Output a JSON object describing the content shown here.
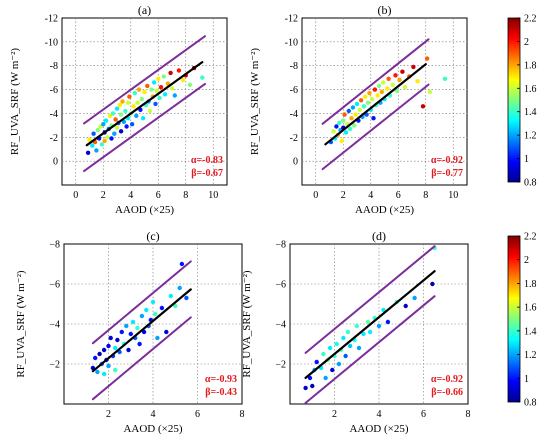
{
  "figure": {
    "shared_xlabel": "AAOD (×25)",
    "shared_ylabel": "RF_UVA_SRF (W m⁻²)"
  },
  "colorbar": {
    "ticks": [
      0.8,
      1.0,
      1.2,
      1.4,
      1.6,
      1.8,
      2.0,
      2.2
    ],
    "tick_labels": [
      "0.8",
      "1",
      "1.2",
      "1.4",
      "1.6",
      "1.8",
      "2",
      "2.2"
    ],
    "colormap": "jet",
    "range": [
      0.8,
      2.2
    ]
  },
  "chart_data": [
    {
      "type": "scatter",
      "panel_label": "(a)",
      "xlabel": "AAOD (×25)",
      "ylabel": "RF_UVA_SRF (W m⁻²)",
      "xlim": [
        -1,
        11
      ],
      "ylim": [
        2,
        -12
      ],
      "xticks": [
        0,
        2,
        4,
        6,
        8,
        10
      ],
      "xtick_labels": [
        "0",
        "2",
        "4",
        "6",
        "8",
        "10"
      ],
      "yticks": [
        2,
        0,
        -2,
        -4,
        -6,
        -8,
        -10,
        -12
      ],
      "ytick_labels": [
        "",
        "0",
        "-2",
        "-4",
        "-6",
        "-8",
        "-10",
        "-12"
      ],
      "grid": true,
      "annotation": [
        "α=-0.83",
        "β=-0.67"
      ],
      "fit": {
        "slope": -0.83,
        "intercept": -0.67,
        "x_range": [
          0.8,
          9.2
        ]
      },
      "bounds": {
        "offset": 2.0,
        "x_range": [
          0.6,
          9.4
        ]
      },
      "points": [
        [
          0.9,
          -0.7,
          0.9
        ],
        [
          1.0,
          -1.8,
          1.7
        ],
        [
          1.2,
          -1.3,
          1.3
        ],
        [
          1.3,
          -2.3,
          1.1
        ],
        [
          1.4,
          -1.6,
          1.9
        ],
        [
          1.5,
          -0.9,
          1.2
        ],
        [
          1.6,
          -2.6,
          1.5
        ],
        [
          1.7,
          -1.9,
          1.0
        ],
        [
          1.8,
          -2.9,
          1.6
        ],
        [
          1.9,
          -1.4,
          1.4
        ],
        [
          2.0,
          -3.1,
          1.2
        ],
        [
          2.1,
          -2.4,
          0.9
        ],
        [
          2.1,
          -1.7,
          1.8
        ],
        [
          2.2,
          -3.4,
          1.3
        ],
        [
          2.3,
          -2.0,
          1.6
        ],
        [
          2.4,
          -2.7,
          1.1
        ],
        [
          2.5,
          -3.8,
          1.7
        ],
        [
          2.6,
          -1.9,
          1.0
        ],
        [
          2.6,
          -3.0,
          1.5
        ],
        [
          2.7,
          -4.0,
          1.4
        ],
        [
          2.8,
          -2.3,
          1.2
        ],
        [
          2.9,
          -3.5,
          1.9
        ],
        [
          3.0,
          -4.4,
          1.3
        ],
        [
          3.0,
          -2.8,
          1.6
        ],
        [
          3.1,
          -3.2,
          1.1
        ],
        [
          3.2,
          -4.7,
          1.7
        ],
        [
          3.3,
          -2.5,
          0.9
        ],
        [
          3.3,
          -3.9,
          1.5
        ],
        [
          3.4,
          -5.0,
          1.8
        ],
        [
          3.5,
          -3.3,
          1.2
        ],
        [
          3.6,
          -4.2,
          1.4
        ],
        [
          3.7,
          -2.9,
          1.0
        ],
        [
          3.8,
          -4.9,
          1.6
        ],
        [
          3.8,
          -3.6,
          1.3
        ],
        [
          3.9,
          -5.4,
          1.9
        ],
        [
          4.0,
          -4.0,
          1.5
        ],
        [
          4.1,
          -3.1,
          1.1
        ],
        [
          4.2,
          -4.6,
          1.7
        ],
        [
          4.3,
          -5.7,
          1.4
        ],
        [
          4.4,
          -3.8,
          1.2
        ],
        [
          4.5,
          -4.9,
          1.6
        ],
        [
          4.6,
          -6.0,
          1.8
        ],
        [
          4.7,
          -4.3,
          1.0
        ],
        [
          4.8,
          -5.2,
          1.5
        ],
        [
          4.9,
          -3.6,
          1.3
        ],
        [
          5.0,
          -5.8,
          1.7
        ],
        [
          5.1,
          -4.7,
          1.4
        ],
        [
          5.2,
          -6.3,
          1.9
        ],
        [
          5.3,
          -5.0,
          1.2
        ],
        [
          5.4,
          -4.2,
          1.6
        ],
        [
          5.5,
          -6.0,
          1.5
        ],
        [
          5.6,
          -5.4,
          1.8
        ],
        [
          5.7,
          -6.6,
          1.3
        ],
        [
          5.8,
          -4.8,
          1.1
        ],
        [
          5.9,
          -5.9,
          1.6
        ],
        [
          6.0,
          -6.9,
          1.7
        ],
        [
          6.1,
          -5.3,
          1.4
        ],
        [
          6.2,
          -6.2,
          2.0
        ],
        [
          6.4,
          -7.1,
          1.5
        ],
        [
          6.5,
          -5.6,
          1.3
        ],
        [
          6.7,
          -6.5,
          1.8
        ],
        [
          6.9,
          -7.4,
          2.1
        ],
        [
          7.0,
          -6.1,
          1.6
        ],
        [
          7.2,
          -5.5,
          1.2
        ],
        [
          7.5,
          -7.6,
          2.0
        ],
        [
          7.8,
          -6.8,
          1.7
        ],
        [
          8.0,
          -7.2,
          2.1
        ],
        [
          8.3,
          -6.4,
          1.5
        ],
        [
          8.6,
          -7.8,
          2.2
        ],
        [
          9.2,
          -7.0,
          1.4
        ]
      ]
    },
    {
      "type": "scatter",
      "panel_label": "(b)",
      "xlabel": "AAOD (×25)",
      "ylabel": "RF_UVA_SRF (W m⁻²)",
      "xlim": [
        -1,
        11
      ],
      "ylim": [
        2,
        -12
      ],
      "xticks": [
        0,
        2,
        4,
        6,
        8,
        10
      ],
      "xtick_labels": [
        "0",
        "2",
        "4",
        "6",
        "8",
        "10"
      ],
      "yticks": [
        2,
        0,
        -2,
        -4,
        -6,
        -8,
        -10,
        -12
      ],
      "ytick_labels": [
        "",
        "0",
        "-2",
        "-4",
        "-6",
        "-8",
        "-10",
        "-12"
      ],
      "grid": true,
      "annotation": [
        "α=-0.92",
        "β=-0.77"
      ],
      "fit": {
        "slope": -0.92,
        "intercept": -0.77,
        "x_range": [
          0.7,
          8.0
        ]
      },
      "bounds": {
        "offset": 1.9,
        "x_range": [
          0.5,
          8.2
        ]
      },
      "points": [
        [
          1.1,
          -1.6,
          1.1
        ],
        [
          1.3,
          -2.5,
          1.6
        ],
        [
          1.4,
          -1.9,
          1.3
        ],
        [
          1.5,
          -2.9,
          1.0
        ],
        [
          1.6,
          -2.2,
          1.8
        ],
        [
          1.7,
          -3.2,
          1.4
        ],
        [
          1.8,
          -2.6,
          1.2
        ],
        [
          1.9,
          -1.7,
          1.7
        ],
        [
          2.0,
          -3.4,
          1.5
        ],
        [
          2.0,
          -2.8,
          0.9
        ],
        [
          2.1,
          -3.9,
          1.9
        ],
        [
          2.2,
          -2.4,
          1.3
        ],
        [
          2.3,
          -3.1,
          1.6
        ],
        [
          2.4,
          -4.2,
          1.1
        ],
        [
          2.5,
          -2.7,
          1.4
        ],
        [
          2.6,
          -3.6,
          1.8
        ],
        [
          2.7,
          -4.5,
          1.2
        ],
        [
          2.8,
          -3.0,
          1.5
        ],
        [
          2.9,
          -3.9,
          1.7
        ],
        [
          3.0,
          -4.8,
          1.3
        ],
        [
          3.1,
          -3.4,
          1.0
        ],
        [
          3.2,
          -4.3,
          1.6
        ],
        [
          3.3,
          -5.1,
          1.9
        ],
        [
          3.4,
          -3.7,
          1.2
        ],
        [
          3.5,
          -4.6,
          1.4
        ],
        [
          3.6,
          -5.4,
          1.7
        ],
        [
          3.7,
          -3.9,
          1.1
        ],
        [
          3.8,
          -4.9,
          1.5
        ],
        [
          3.9,
          -5.7,
          1.8
        ],
        [
          4.0,
          -4.3,
          1.3
        ],
        [
          4.1,
          -5.2,
          1.6
        ],
        [
          4.2,
          -3.6,
          1.0
        ],
        [
          4.3,
          -6.0,
          2.0
        ],
        [
          4.4,
          -4.7,
          1.4
        ],
        [
          4.5,
          -5.5,
          1.7
        ],
        [
          4.6,
          -6.3,
          1.5
        ],
        [
          4.7,
          -4.9,
          1.2
        ],
        [
          4.8,
          -5.8,
          1.8
        ],
        [
          4.9,
          -6.6,
          1.6
        ],
        [
          5.0,
          -5.2,
          1.3
        ],
        [
          5.2,
          -6.1,
          1.7
        ],
        [
          5.3,
          -6.9,
          1.9
        ],
        [
          5.4,
          -5.5,
          1.4
        ],
        [
          5.6,
          -6.4,
          1.6
        ],
        [
          5.8,
          -7.2,
          2.0
        ],
        [
          5.9,
          -5.9,
          1.5
        ],
        [
          6.1,
          -6.8,
          1.8
        ],
        [
          6.3,
          -7.5,
          2.1
        ],
        [
          6.5,
          -6.2,
          1.6
        ],
        [
          6.8,
          -7.1,
          1.9
        ],
        [
          7.1,
          -7.9,
          2.1
        ],
        [
          7.4,
          -6.7,
          1.7
        ],
        [
          7.8,
          -4.6,
          2.1
        ],
        [
          8.1,
          -8.6,
          1.9
        ],
        [
          8.3,
          -5.8,
          1.6
        ],
        [
          9.4,
          -6.9,
          1.4
        ]
      ]
    },
    {
      "type": "scatter",
      "panel_label": "(c)",
      "xlabel": "AAOD (×25)",
      "ylabel": "RF_UVA_SRF (W m⁻²)",
      "xlim": [
        0,
        8
      ],
      "ylim": [
        0,
        -8
      ],
      "xticks": [
        0,
        2,
        4,
        6,
        8
      ],
      "xtick_labels": [
        "",
        "2",
        "4",
        "6",
        "8"
      ],
      "yticks": [
        0,
        -2,
        -4,
        -6,
        -8
      ],
      "ytick_labels": [
        "",
        "−2",
        "−4",
        "−6",
        "−8"
      ],
      "grid": true,
      "annotation": [
        "α=-0.93",
        "β=-0.43"
      ],
      "fit": {
        "slope": -0.93,
        "intercept": -0.43,
        "x_range": [
          1.3,
          5.7
        ]
      },
      "bounds": {
        "offset": 1.4,
        "x_range": [
          1.3,
          5.7
        ]
      },
      "points": [
        [
          1.3,
          -1.8,
          0.9
        ],
        [
          1.4,
          -2.3,
          1.0
        ],
        [
          1.5,
          -1.6,
          1.2
        ],
        [
          1.6,
          -2.5,
          0.85
        ],
        [
          1.7,
          -2.0,
          1.1
        ],
        [
          1.8,
          -2.7,
          0.9
        ],
        [
          1.8,
          -1.5,
          1.3
        ],
        [
          1.9,
          -2.2,
          1.0
        ],
        [
          2.0,
          -2.9,
          0.95
        ],
        [
          2.0,
          -1.9,
          1.2
        ],
        [
          2.1,
          -3.3,
          0.9
        ],
        [
          2.2,
          -2.4,
          1.05
        ],
        [
          2.3,
          -2.8,
          1.3
        ],
        [
          2.3,
          -1.7,
          1.4
        ],
        [
          2.4,
          -3.2,
          0.9
        ],
        [
          2.5,
          -2.6,
          1.1
        ],
        [
          2.6,
          -3.6,
          1.0
        ],
        [
          2.7,
          -3.0,
          1.35
        ],
        [
          2.8,
          -3.9,
          1.2
        ],
        [
          2.9,
          -2.7,
          0.9
        ],
        [
          3.0,
          -3.5,
          1.0
        ],
        [
          3.1,
          -4.1,
          1.3
        ],
        [
          3.2,
          -3.3,
          1.1
        ],
        [
          3.3,
          -3.8,
          1.4
        ],
        [
          3.4,
          -3.0,
          1.0
        ],
        [
          3.5,
          -4.4,
          1.2
        ],
        [
          3.6,
          -3.6,
          0.95
        ],
        [
          3.7,
          -4.7,
          1.3
        ],
        [
          3.8,
          -3.9,
          1.1
        ],
        [
          3.9,
          -4.2,
          1.0
        ],
        [
          4.0,
          -5.1,
          1.3
        ],
        [
          4.1,
          -4.5,
          1.4
        ],
        [
          4.2,
          -3.3,
          1.2
        ],
        [
          4.4,
          -4.8,
          1.0
        ],
        [
          4.6,
          -3.6,
          0.9
        ],
        [
          4.8,
          -5.4,
          1.3
        ],
        [
          5.0,
          -4.9,
          1.4
        ],
        [
          5.2,
          -5.8,
          1.2
        ],
        [
          5.3,
          -7.0,
          1.0
        ],
        [
          5.5,
          -5.3,
          1.1
        ]
      ]
    },
    {
      "type": "scatter",
      "panel_label": "(d)",
      "xlabel": "AAOD (×25)",
      "ylabel": "RF_UVA_SRF (W m⁻²)",
      "xlim": [
        0,
        8
      ],
      "ylim": [
        0,
        -8
      ],
      "xticks": [
        0,
        2,
        4,
        6,
        8
      ],
      "xtick_labels": [
        "",
        "2",
        "4",
        "6",
        "8"
      ],
      "yticks": [
        0,
        -2,
        -4,
        -6,
        -8
      ],
      "ytick_labels": [
        "",
        "−2",
        "−4",
        "−6",
        "−8"
      ],
      "grid": true,
      "annotation": [
        "α=-0.92",
        "β=-0.66"
      ],
      "fit": {
        "slope": -0.92,
        "intercept": -0.66,
        "x_range": [
          0.7,
          6.5
        ]
      },
      "bounds": {
        "offset": 1.25,
        "x_range": [
          0.7,
          6.5
        ]
      },
      "points": [
        [
          0.7,
          -0.8,
          0.9
        ],
        [
          0.9,
          -1.3,
          1.0
        ],
        [
          1.0,
          -0.9,
          0.85
        ],
        [
          1.1,
          -1.7,
          1.2
        ],
        [
          1.2,
          -2.1,
          1.0
        ],
        [
          1.4,
          -1.8,
          1.3
        ],
        [
          1.5,
          -2.5,
          1.4
        ],
        [
          1.6,
          -1.3,
          1.2
        ],
        [
          1.7,
          -2.2,
          1.5
        ],
        [
          1.8,
          -2.8,
          1.3
        ],
        [
          1.9,
          -1.7,
          0.9
        ],
        [
          2.0,
          -2.4,
          1.4
        ],
        [
          2.1,
          -3.0,
          1.35
        ],
        [
          2.2,
          -2.0,
          1.2
        ],
        [
          2.3,
          -2.7,
          1.45
        ],
        [
          2.4,
          -3.3,
          1.3
        ],
        [
          2.5,
          -2.4,
          1.1
        ],
        [
          2.6,
          -3.6,
          1.4
        ],
        [
          2.7,
          -2.9,
          1.25
        ],
        [
          2.9,
          -3.2,
          1.35
        ],
        [
          3.0,
          -3.9,
          1.4
        ],
        [
          3.1,
          -2.8,
          1.2
        ],
        [
          3.3,
          -3.5,
          1.3
        ],
        [
          3.5,
          -4.1,
          1.45
        ],
        [
          3.6,
          -3.6,
          1.3
        ],
        [
          3.8,
          -4.3,
          1.4
        ],
        [
          4.0,
          -3.9,
          1.2
        ],
        [
          4.2,
          -4.7,
          1.3
        ],
        [
          4.4,
          -4.1,
          1.0
        ],
        [
          4.8,
          -5.1,
          1.4
        ],
        [
          5.2,
          -4.9,
          0.9
        ],
        [
          5.6,
          -5.3,
          1.2
        ],
        [
          6.4,
          -6.0,
          0.85
        ],
        [
          6.5,
          -7.8,
          1.4
        ]
      ]
    }
  ]
}
